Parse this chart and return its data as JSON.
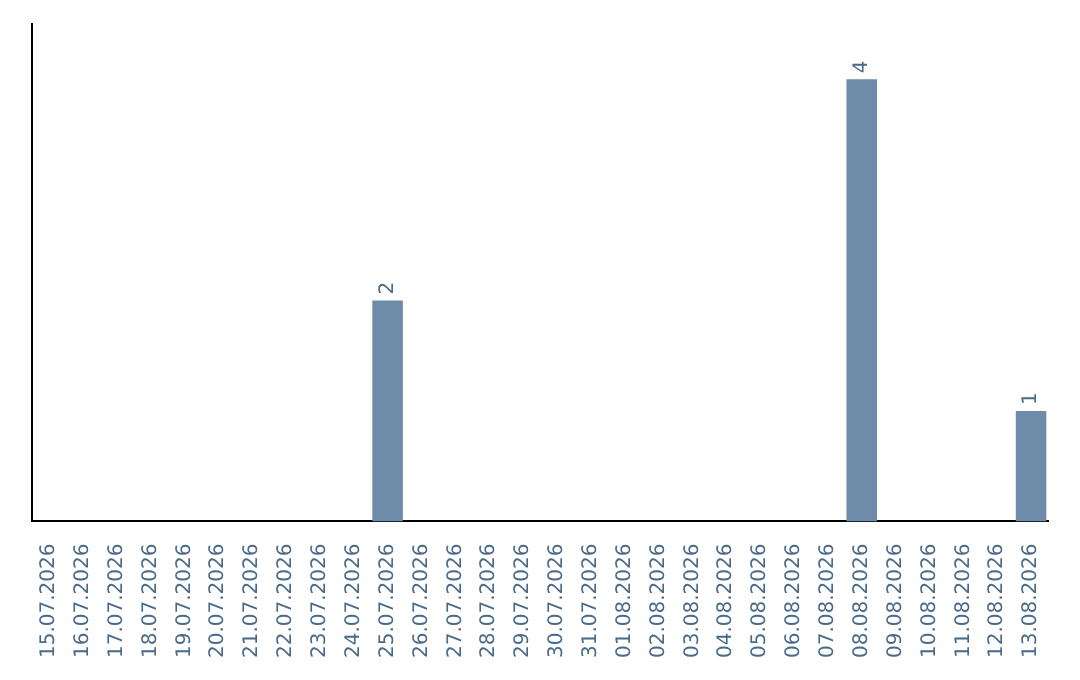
{
  "chart_data": {
    "type": "bar",
    "categories": [
      "15.07.2026",
      "16.07.2026",
      "17.07.2026",
      "18.07.2026",
      "19.07.2026",
      "20.07.2026",
      "21.07.2026",
      "22.07.2026",
      "23.07.2026",
      "24.07.2026",
      "25.07.2026",
      "26.07.2026",
      "27.07.2026",
      "28.07.2026",
      "29.07.2026",
      "30.07.2026",
      "31.07.2026",
      "01.08.2026",
      "02.08.2026",
      "03.08.2026",
      "04.08.2026",
      "05.08.2026",
      "06.08.2026",
      "07.08.2026",
      "08.08.2026",
      "09.08.2026",
      "10.08.2026",
      "11.08.2026",
      "12.08.2026",
      "13.08.2026"
    ],
    "values": [
      0,
      0,
      0,
      0,
      0,
      0,
      0,
      0,
      0,
      0,
      2,
      0,
      0,
      0,
      0,
      0,
      0,
      0,
      0,
      0,
      0,
      0,
      0,
      0,
      4,
      0,
      0,
      0,
      0,
      1
    ],
    "value_labels": [
      null,
      null,
      null,
      null,
      null,
      null,
      null,
      null,
      null,
      null,
      "2",
      null,
      null,
      null,
      null,
      null,
      null,
      null,
      null,
      null,
      null,
      null,
      null,
      null,
      "4",
      null,
      null,
      null,
      null,
      "1"
    ],
    "color": "#6e8caa",
    "grid": false,
    "legend": false,
    "tick_labels": "x"
  }
}
